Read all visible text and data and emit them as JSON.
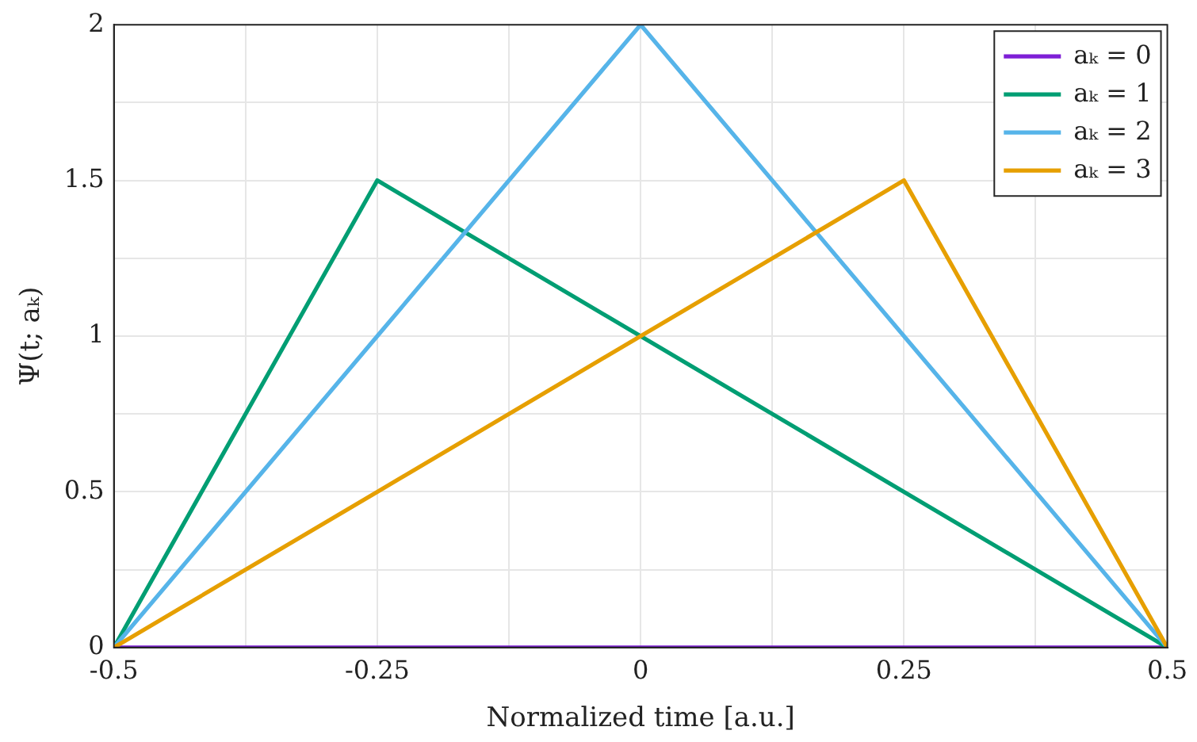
{
  "chart_data": {
    "type": "line",
    "xlabel": "Normalized time [a.u.]",
    "ylabel": "Ψ(t; aₖ)",
    "x": [
      -0.5,
      -0.25,
      0,
      0.25,
      0.5
    ],
    "series": [
      {
        "name": "aₖ = 0",
        "color": "#7e1fd6",
        "values": [
          0,
          0,
          0,
          0,
          0
        ]
      },
      {
        "name": "aₖ = 1",
        "color": "#009e73",
        "values": [
          0,
          1.5,
          1,
          0.5,
          0
        ]
      },
      {
        "name": "aₖ = 2",
        "color": "#56b4e9",
        "values": [
          0,
          1,
          2,
          1,
          0
        ]
      },
      {
        "name": "aₖ = 3",
        "color": "#e69f00",
        "values": [
          0,
          0.5,
          1,
          1.5,
          0
        ]
      }
    ],
    "xlim": [
      -0.5,
      0.5
    ],
    "xticks": [
      -0.5,
      {
        "value": -0.375,
        "label": null
      },
      -0.25,
      {
        "value": -0.125,
        "label": null
      },
      0,
      {
        "value": 0.125,
        "label": null
      },
      0.25,
      {
        "value": 0.375,
        "label": null
      },
      0.5
    ],
    "ylim": [
      0,
      2
    ],
    "yticks": [
      0,
      {
        "value": 0.25,
        "label": null
      },
      0.5,
      {
        "value": 0.75,
        "label": null
      },
      1,
      {
        "value": 1.25,
        "label": null
      },
      1.5,
      {
        "value": 1.75,
        "label": null
      },
      2
    ],
    "grid": true,
    "legend": "top right",
    "marker": "none",
    "line_style": "solid"
  }
}
